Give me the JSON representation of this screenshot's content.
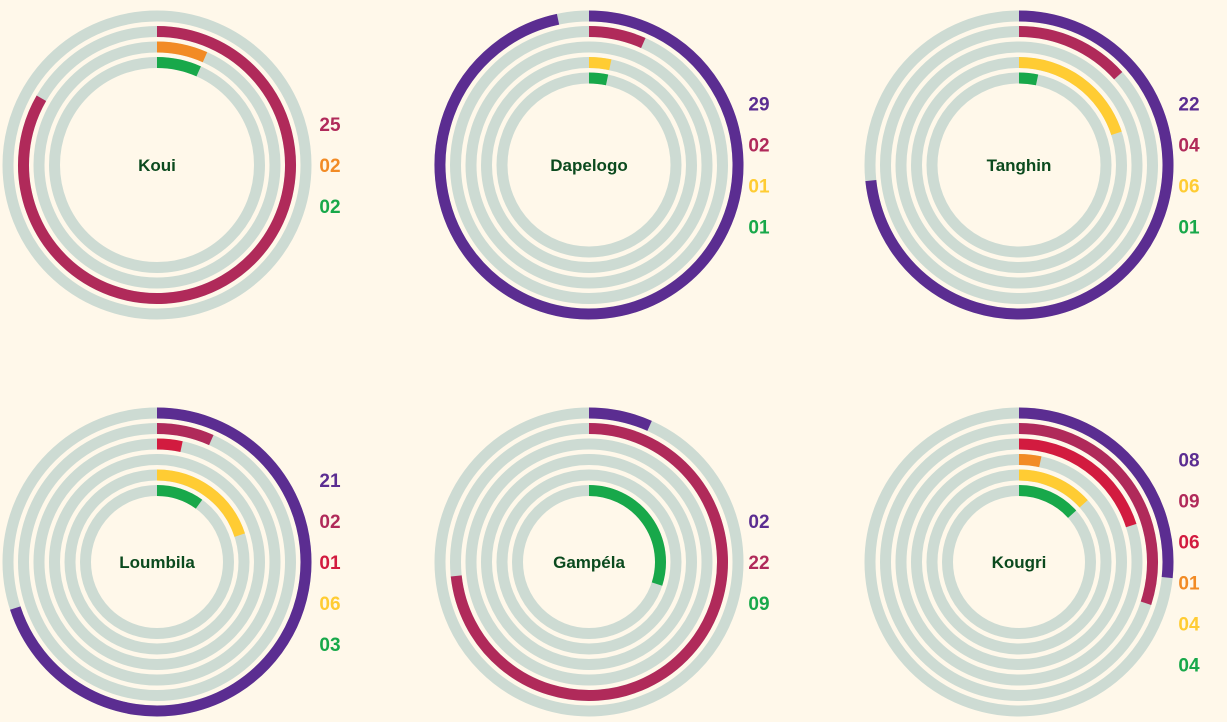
{
  "chart_data": {
    "type": "radial-bar",
    "scale_max": 30,
    "colors": {
      "track": "#cddbd3",
      "background": "#fff8ea",
      "center_label": "#0b4a1e",
      "purple": "#5b2d91",
      "maroon": "#b02a5a",
      "crimson": "#d21b3f",
      "orange": "#f28b25",
      "yellow": "#ffcc33",
      "green": "#18a84a"
    },
    "charts": [
      {
        "label": "Koui",
        "rings": [
          {
            "value": null
          },
          {
            "value": 25,
            "display": "25",
            "color": "maroon"
          },
          {
            "value": 2,
            "display": "02",
            "color": "orange"
          },
          {
            "value": 2,
            "display": "02",
            "color": "green"
          }
        ]
      },
      {
        "label": "Dapelogo",
        "rings": [
          {
            "value": 29,
            "display": "29",
            "color": "purple"
          },
          {
            "value": 2,
            "display": "02",
            "color": "maroon"
          },
          {
            "value": null
          },
          {
            "value": 1,
            "display": "01",
            "color": "yellow"
          },
          {
            "value": 1,
            "display": "01",
            "color": "green"
          }
        ]
      },
      {
        "label": "Tanghin",
        "rings": [
          {
            "value": 22,
            "display": "22",
            "color": "purple"
          },
          {
            "value": 4,
            "display": "04",
            "color": "maroon"
          },
          {
            "value": null
          },
          {
            "value": 6,
            "display": "06",
            "color": "yellow"
          },
          {
            "value": 1,
            "display": "01",
            "color": "green"
          }
        ]
      },
      {
        "label": "Loumbila",
        "rings": [
          {
            "value": 21,
            "display": "21",
            "color": "purple"
          },
          {
            "value": 2,
            "display": "02",
            "color": "maroon"
          },
          {
            "value": 1,
            "display": "01",
            "color": "crimson"
          },
          {
            "value": null
          },
          {
            "value": 6,
            "display": "06",
            "color": "yellow"
          },
          {
            "value": 3,
            "display": "03",
            "color": "green"
          }
        ]
      },
      {
        "label": "Gampéla",
        "rings": [
          {
            "value": 2,
            "display": "02",
            "color": "purple"
          },
          {
            "value": 22,
            "display": "22",
            "color": "maroon"
          },
          {
            "value": null
          },
          {
            "value": null
          },
          {
            "value": null
          },
          {
            "value": 9,
            "display": "09",
            "color": "green"
          }
        ]
      },
      {
        "label": "Kougri",
        "rings": [
          {
            "value": 8,
            "display": "08",
            "color": "purple"
          },
          {
            "value": 9,
            "display": "09",
            "color": "maroon"
          },
          {
            "value": 6,
            "display": "06",
            "color": "crimson"
          },
          {
            "value": 1,
            "display": "01",
            "color": "orange"
          },
          {
            "value": 4,
            "display": "04",
            "color": "yellow"
          },
          {
            "value": 4,
            "display": "04",
            "color": "green"
          }
        ]
      }
    ]
  }
}
